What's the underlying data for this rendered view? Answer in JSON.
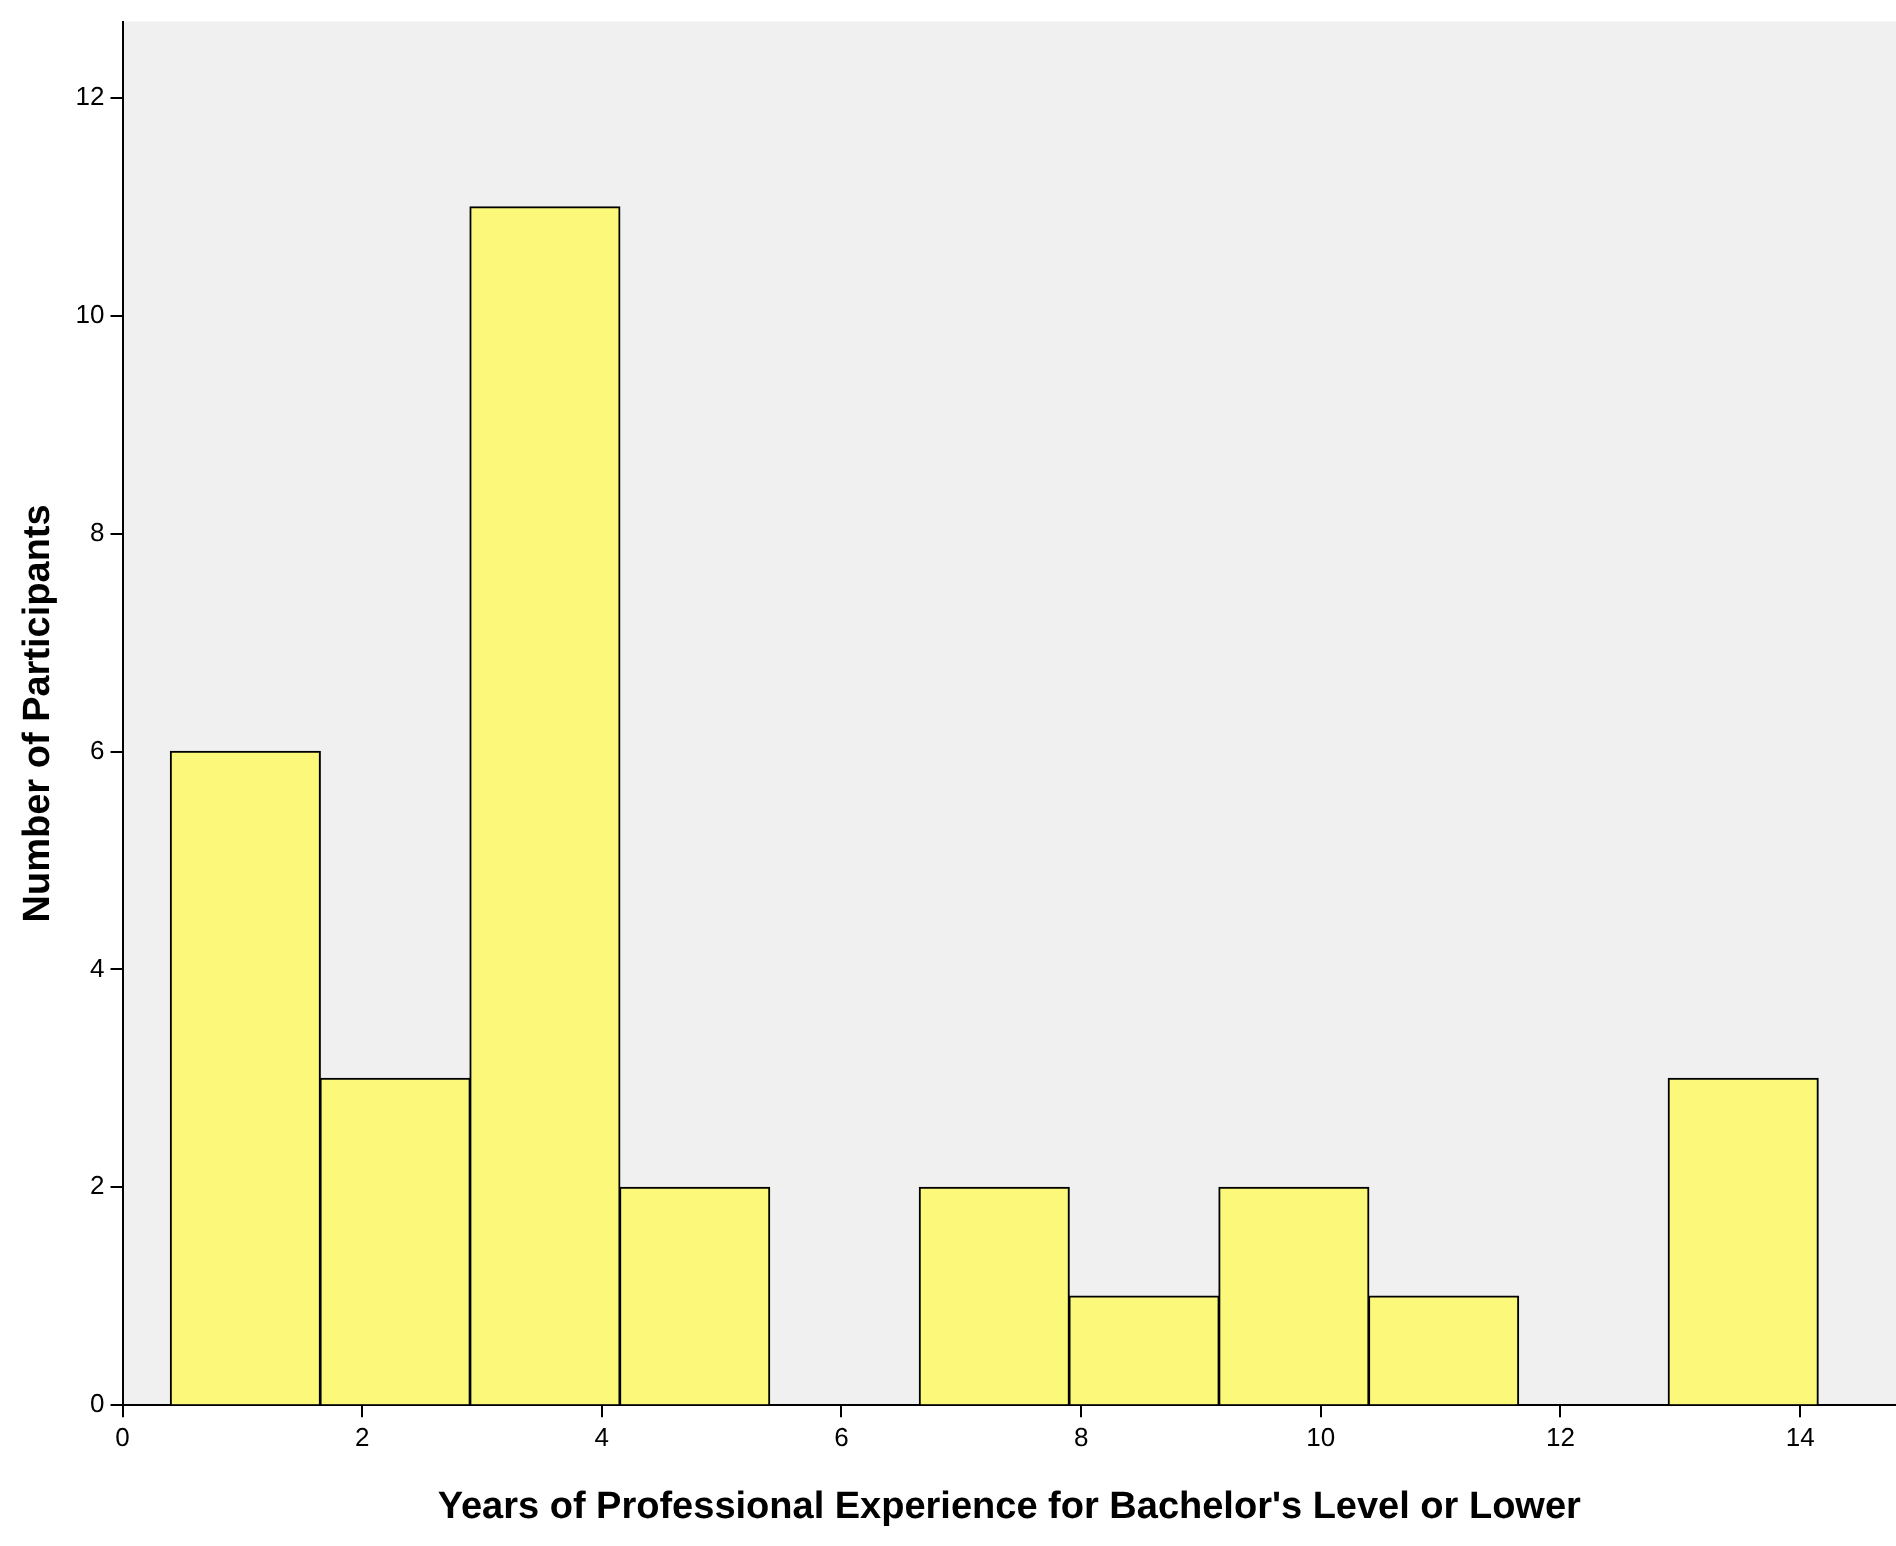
{
  "chart_data": {
    "type": "histogram",
    "xlabel": "Years of Professional Experience for Bachelor's Level or Lower",
    "ylabel": "Number of Participants",
    "bins": [
      0.4,
      1.65,
      2.9,
      4.15,
      5.4,
      6.65,
      7.9,
      9.15,
      10.4,
      11.65,
      12.9,
      14.15
    ],
    "values": [
      6,
      3,
      11,
      2,
      0,
      2,
      1,
      2,
      1,
      0,
      3
    ],
    "color": "#fbf87a",
    "xlim": [
      0,
      14.8
    ],
    "xticks": [
      0,
      2,
      4,
      6,
      8,
      10,
      12,
      14
    ],
    "ylim": [
      0,
      12.7
    ],
    "yticks": [
      0,
      2,
      4,
      6,
      8,
      10,
      12
    ],
    "grid": false,
    "legend": false
  }
}
